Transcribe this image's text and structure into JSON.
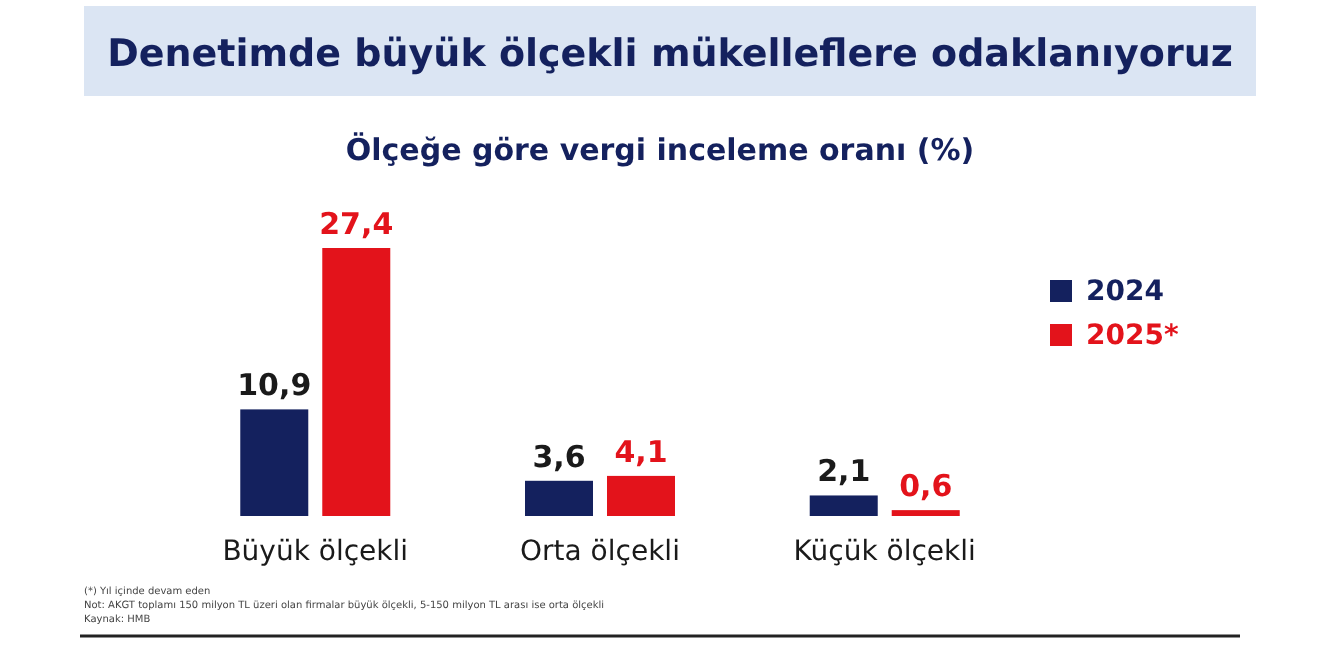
{
  "chart_data": {
    "type": "bar",
    "title": "Denetimde büyük ölçekli mükelleflere odaklanıyoruz",
    "subtitle": "Ölçeğe göre vergi inceleme oranı (%)",
    "categories": [
      "Büyük ölçekli",
      "Orta ölçekli",
      "Küçük ölçekli"
    ],
    "series": [
      {
        "name": "2024",
        "color": "#14215e",
        "values": [
          10.9,
          3.6,
          2.1
        ],
        "value_labels": [
          "10,9",
          "3,6",
          "2,1"
        ]
      },
      {
        "name": "2025*",
        "color": "#e3131b",
        "values": [
          27.4,
          4.1,
          0.6
        ],
        "value_labels": [
          "27,4",
          "4,1",
          "0,6"
        ]
      }
    ],
    "legend": "right",
    "annotations": [
      "(*) Yıl içinde devam eden",
      "Not: AKGT toplamı 150 milyon TL üzeri olan firmalar büyük ölçekli, 5-150 milyon TL arası ise orta ölçekli",
      "Kaynak: HMB"
    ]
  }
}
